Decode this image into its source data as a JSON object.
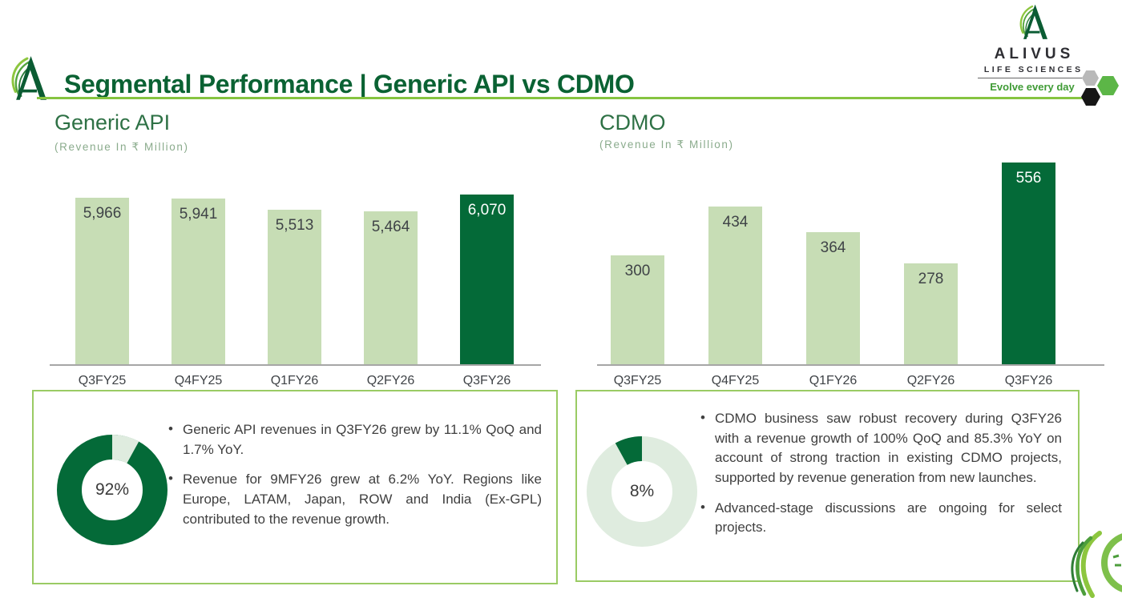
{
  "header": {
    "title": "Segmental Performance | Generic API vs CDMO",
    "logo": {
      "name": "ALIVUS",
      "sub": "LIFE SCIENCES",
      "tagline": "Evolve every day"
    }
  },
  "sections": {
    "generic_api": {
      "heading": "Generic API",
      "subheading": "(Revenue In ₹ Million)"
    },
    "cdmo": {
      "heading": "CDMO",
      "subheading": "(Revenue In ₹ Million)"
    }
  },
  "chart_data": [
    {
      "type": "bar",
      "title": "Generic API",
      "ylabel": "Revenue In ₹ Million",
      "categories": [
        "Q3FY25",
        "Q4FY25",
        "Q1FY26",
        "Q2FY26",
        "Q3FY26"
      ],
      "values": [
        5966,
        5941,
        5513,
        5464,
        6070
      ],
      "value_labels": [
        "5,966",
        "5,941",
        "5,513",
        "5,464",
        "6,070"
      ],
      "highlight_index": 4,
      "ylim": [
        0,
        6070
      ],
      "grid": false,
      "legend": "none"
    },
    {
      "type": "bar",
      "title": "CDMO",
      "ylabel": "Revenue In ₹ Million",
      "categories": [
        "Q3FY25",
        "Q4FY25",
        "Q1FY26",
        "Q2FY26",
        "Q3FY26"
      ],
      "values": [
        300,
        434,
        364,
        278,
        556
      ],
      "value_labels": [
        "300",
        "434",
        "364",
        "278",
        "556"
      ],
      "highlight_index": 4,
      "ylim": [
        0,
        556
      ],
      "grid": false,
      "legend": "none"
    },
    {
      "type": "pie",
      "title": "Generic API revenue share",
      "center_label": "92%",
      "anchor": "start",
      "slices": [
        {
          "label": "Generic API",
          "value": 92,
          "color": "#046a38"
        },
        {
          "label": "CDMO",
          "value": 8,
          "color": "#dfecdf"
        }
      ]
    },
    {
      "type": "pie",
      "title": "CDMO revenue share",
      "center_label": "8%",
      "anchor": "end",
      "slices": [
        {
          "label": "CDMO",
          "value": 8,
          "color": "#046a38"
        },
        {
          "label": "Generic API",
          "value": 92,
          "color": "#dfecdf"
        }
      ]
    }
  ],
  "insights": {
    "left": {
      "bullets": [
        "Generic API revenues in Q3FY26 grew by 11.1% QoQ and 1.7% YoY.",
        "Revenue for 9MFY26 grew at 6.2% YoY. Regions like Europe, LATAM, Japan, ROW and India (Ex-GPL) contributed to the revenue growth."
      ]
    },
    "right": {
      "bullets": [
        "CDMO business saw robust recovery during Q3FY26 with a revenue growth of 100% QoQ and 85.3% YoY on account of strong traction in existing CDMO projects, supported by revenue generation from new launches.",
        "Advanced-stage discussions are ongoing for select projects."
      ]
    }
  },
  "colors": {
    "dark_green": "#046a38",
    "light_green_bar": "#c7ddb5",
    "pale_green_donut": "#dfecdf",
    "border_green": "#9acb64",
    "line_green": "#86c440",
    "title_green": "#0a6233",
    "heading_green": "#2e7145",
    "subtitle_green": "#8aab8c",
    "text_dark": "#3f4347",
    "axis_gray": "#a6a6a6",
    "tagline_green": "#3f9b35"
  }
}
